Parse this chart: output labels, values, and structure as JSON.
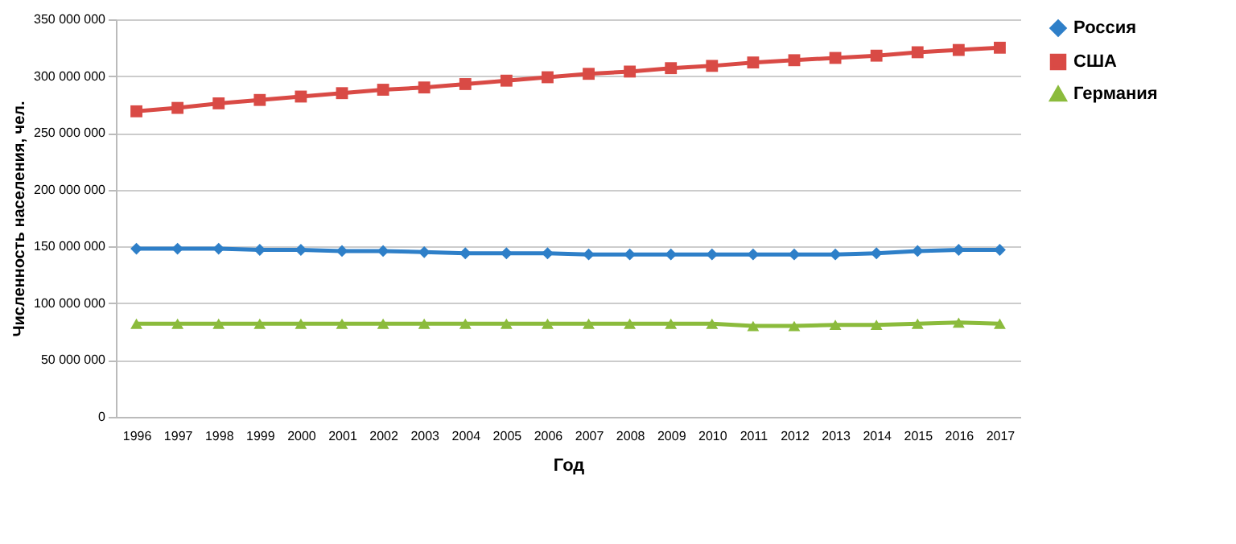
{
  "chart_data": {
    "type": "line",
    "xlabel": "Год",
    "ylabel": "Численность населения, чел.",
    "categories": [
      "1996",
      "1997",
      "1998",
      "1999",
      "2000",
      "2001",
      "2002",
      "2003",
      "2004",
      "2005",
      "2006",
      "2007",
      "2008",
      "2009",
      "2010",
      "2011",
      "2012",
      "2013",
      "2014",
      "2015",
      "2016",
      "2017"
    ],
    "series": [
      {
        "name": "Россия",
        "color": "#2e7fc8",
        "marker": "diamond",
        "values": [
          148000000,
          148000000,
          148000000,
          147000000,
          147000000,
          146000000,
          146000000,
          145000000,
          144000000,
          144000000,
          144000000,
          143000000,
          143000000,
          143000000,
          143000000,
          143000000,
          143000000,
          143000000,
          144000000,
          146000000,
          147000000,
          147000000
        ]
      },
      {
        "name": "США",
        "color": "#d94a45",
        "marker": "square",
        "values": [
          269000000,
          272000000,
          276000000,
          279000000,
          282000000,
          285000000,
          288000000,
          290000000,
          293000000,
          296000000,
          299000000,
          302000000,
          304000000,
          307000000,
          309000000,
          312000000,
          314000000,
          316000000,
          318000000,
          321000000,
          323000000,
          325000000
        ]
      },
      {
        "name": "Германия",
        "color": "#8bbb3c",
        "marker": "triangle",
        "values": [
          82000000,
          82000000,
          82000000,
          82000000,
          82000000,
          82000000,
          82000000,
          82000000,
          82000000,
          82000000,
          82000000,
          82000000,
          82000000,
          82000000,
          82000000,
          80000000,
          80000000,
          81000000,
          81000000,
          82000000,
          83000000,
          82000000
        ]
      }
    ],
    "ylim": [
      0,
      350000000
    ],
    "yticks": [
      {
        "value": 0,
        "label": "0"
      },
      {
        "value": 50000000,
        "label": "50 000 000"
      },
      {
        "value": 100000000,
        "label": "100 000 000"
      },
      {
        "value": 150000000,
        "label": "150 000 000"
      },
      {
        "value": 200000000,
        "label": "200 000 000"
      },
      {
        "value": 250000000,
        "label": "250 000 000"
      },
      {
        "value": 300000000,
        "label": "300 000 000"
      },
      {
        "value": 350000000,
        "label": "350 000 000"
      }
    ],
    "grid": "y",
    "legend": "right",
    "line_style": "solid"
  }
}
